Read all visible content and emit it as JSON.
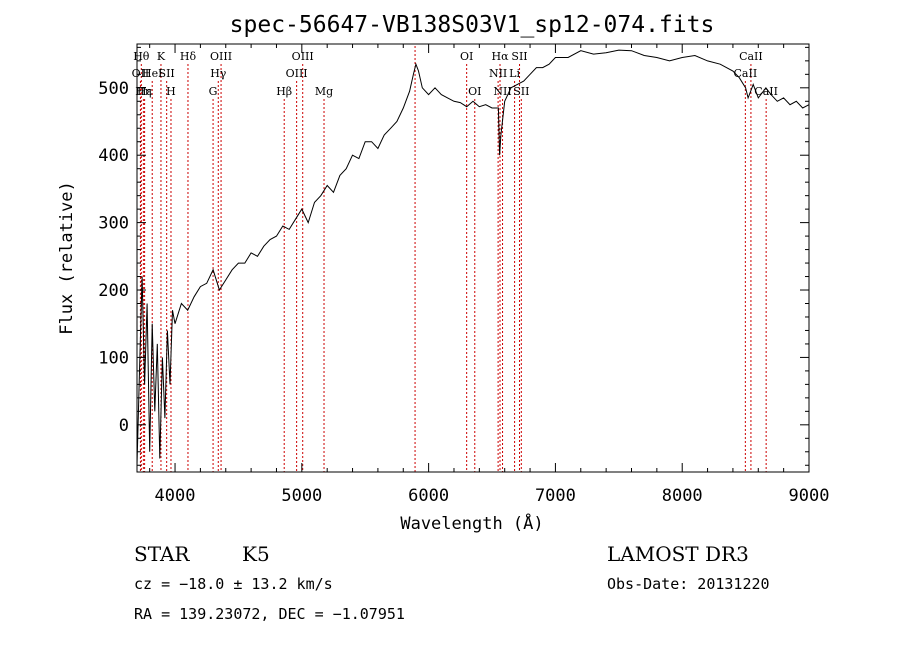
{
  "chart_data": {
    "type": "line",
    "title": "spec-56647-VB138S03V1_sp12-074.fits",
    "xlabel": "Wavelength (Å)",
    "ylabel": "Flux (relative)",
    "xlim": [
      3700,
      9000
    ],
    "ylim": [
      -70,
      565
    ],
    "xticks": [
      4000,
      5000,
      6000,
      7000,
      8000,
      9000
    ],
    "yticks": [
      0,
      100,
      200,
      300,
      400,
      500
    ],
    "series": [
      {
        "name": "flux",
        "x": [
          3700,
          3720,
          3740,
          3760,
          3780,
          3800,
          3820,
          3840,
          3860,
          3880,
          3900,
          3920,
          3940,
          3960,
          3980,
          4000,
          4050,
          4100,
          4150,
          4200,
          4250,
          4300,
          4350,
          4400,
          4450,
          4500,
          4550,
          4600,
          4650,
          4700,
          4750,
          4800,
          4850,
          4900,
          4950,
          5000,
          5050,
          5100,
          5150,
          5200,
          5250,
          5300,
          5350,
          5400,
          5450,
          5500,
          5550,
          5600,
          5650,
          5700,
          5750,
          5800,
          5850,
          5880,
          5900,
          5920,
          5950,
          6000,
          6050,
          6100,
          6150,
          6200,
          6250,
          6300,
          6350,
          6400,
          6450,
          6500,
          6550,
          6560,
          6570,
          6600,
          6650,
          6700,
          6750,
          6800,
          6850,
          6900,
          6950,
          7000,
          7100,
          7200,
          7300,
          7400,
          7500,
          7600,
          7700,
          7800,
          7900,
          8000,
          8100,
          8200,
          8300,
          8400,
          8450,
          8500,
          8520,
          8540,
          8560,
          8600,
          8640,
          8660,
          8700,
          8750,
          8800,
          8850,
          8900,
          8950,
          9000
        ],
        "y": [
          -60,
          80,
          220,
          60,
          180,
          -40,
          150,
          20,
          120,
          -50,
          100,
          10,
          140,
          60,
          170,
          150,
          180,
          170,
          190,
          205,
          210,
          230,
          200,
          215,
          230,
          240,
          240,
          255,
          250,
          265,
          275,
          280,
          295,
          290,
          305,
          320,
          300,
          330,
          340,
          355,
          345,
          370,
          380,
          400,
          395,
          420,
          420,
          410,
          430,
          440,
          450,
          470,
          495,
          520,
          535,
          525,
          500,
          490,
          500,
          490,
          485,
          480,
          478,
          472,
          480,
          472,
          475,
          470,
          470,
          400,
          430,
          480,
          500,
          505,
          510,
          520,
          530,
          530,
          535,
          545,
          545,
          555,
          550,
          552,
          556,
          555,
          548,
          545,
          540,
          545,
          548,
          540,
          535,
          525,
          515,
          500,
          485,
          495,
          505,
          485,
          495,
          500,
          490,
          480,
          485,
          475,
          480,
          470,
          475
        ]
      }
    ],
    "lines": [
      {
        "x": 3734,
        "label": "Hθ",
        "row": 1
      },
      {
        "x": 3727,
        "label": "OII",
        "row": 2
      },
      {
        "x": 3750,
        "label": "Hη",
        "row": 3
      },
      {
        "x": 3760,
        "label": "Hε",
        "row": 3
      },
      {
        "x": 3820,
        "label": "HeI",
        "row": 2
      },
      {
        "x": 3889,
        "label": "K",
        "row": 1
      },
      {
        "x": 3934,
        "label": "SII",
        "row": 2
      },
      {
        "x": 3968,
        "label": "H",
        "row": 3
      },
      {
        "x": 4102,
        "label": "Hδ",
        "row": 1
      },
      {
        "x": 4300,
        "label": "G",
        "row": 3
      },
      {
        "x": 4341,
        "label": "Hγ",
        "row": 2
      },
      {
        "x": 4363,
        "label": "OIII",
        "row": 1
      },
      {
        "x": 4861,
        "label": "Hβ",
        "row": 3
      },
      {
        "x": 4959,
        "label": "OIII",
        "row": 2
      },
      {
        "x": 5007,
        "label": "OIII",
        "row": 1
      },
      {
        "x": 5175,
        "label": "Mg",
        "row": 3
      },
      {
        "x": 5893,
        "label": "",
        "row": 0
      },
      {
        "x": 6300,
        "label": "OI",
        "row": 1
      },
      {
        "x": 6364,
        "label": "OI",
        "row": 3
      },
      {
        "x": 6548,
        "label": "NII",
        "row": 2
      },
      {
        "x": 6563,
        "label": "Hα",
        "row": 1
      },
      {
        "x": 6583,
        "label": "NII",
        "row": 3
      },
      {
        "x": 6678,
        "label": "Li",
        "row": 2
      },
      {
        "x": 6717,
        "label": "SII",
        "row": 1
      },
      {
        "x": 6731,
        "label": "SII",
        "row": 3
      },
      {
        "x": 8498,
        "label": "CaII",
        "row": 2
      },
      {
        "x": 8542,
        "label": "CaII",
        "row": 1
      },
      {
        "x": 8662,
        "label": "CaII",
        "row": 3
      }
    ],
    "line_color": "#cc0000"
  },
  "footer": {
    "object_type": "STAR",
    "subclass": "K5",
    "cz": "cz = −18.0 ± 13.2 km/s",
    "coords": "RA = 139.23072, DEC =  −1.07951",
    "survey": "LAMOST DR3",
    "obs_date": "Obs-Date: 20131220"
  }
}
